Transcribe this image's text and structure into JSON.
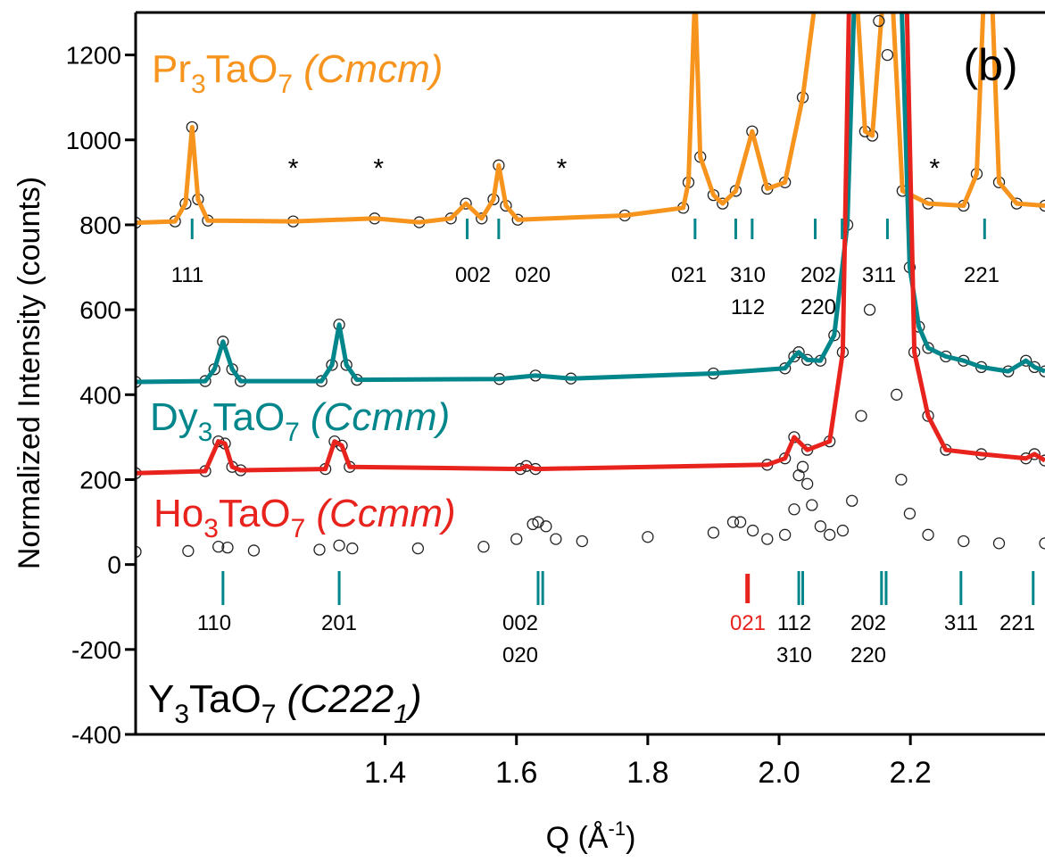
{
  "chart_data": {
    "type": "line",
    "panel_label": "(b)",
    "x_label": [
      "Q (Å",
      "-1",
      ")"
    ],
    "y_label": "Normalized Intensity (counts)",
    "xlim": [
      1.02,
      2.405
    ],
    "ylim": [
      -400,
      1300
    ],
    "xticks": [
      1.4,
      1.6,
      1.8,
      2.0,
      2.2
    ],
    "yticks": [
      -400,
      -200,
      0,
      200,
      400,
      600,
      800,
      1000,
      1200
    ],
    "series": [
      {
        "formula": [
          "Pr",
          "3",
          "TaO",
          "7"
        ],
        "space_group": [
          "(Cmcm)"
        ],
        "color": "#f7941d",
        "fit": true,
        "x": [
          1.02,
          1.08,
          1.096,
          1.106,
          1.115,
          1.13,
          1.26,
          1.384,
          1.452,
          1.5,
          1.523,
          1.547,
          1.565,
          1.573,
          1.584,
          1.602,
          1.765,
          1.854,
          1.862,
          1.872,
          1.88,
          1.9,
          1.914,
          1.934,
          1.959,
          1.982,
          2.009,
          2.036,
          2.057,
          2.118,
          2.131,
          2.142,
          2.159,
          2.172,
          2.188,
          2.227,
          2.281,
          2.301,
          2.312,
          2.324,
          2.335,
          2.362,
          2.405
        ],
        "values": [
          805,
          808,
          850,
          1030,
          860,
          810,
          808,
          815,
          806,
          815,
          850,
          815,
          860,
          940,
          845,
          812,
          822,
          840,
          900,
          1350,
          960,
          870,
          850,
          880,
          1020,
          885,
          900,
          1100,
          1350,
          1350,
          1020,
          1010,
          1350,
          1350,
          880,
          850,
          845,
          920,
          1350,
          1350,
          900,
          850,
          845
        ]
      },
      {
        "formula": [
          "Dy",
          "3",
          "TaO",
          "7"
        ],
        "space_group": [
          "(Ccmm)"
        ],
        "color": "#00868b",
        "fit": true,
        "x": [
          1.02,
          1.126,
          1.14,
          1.153,
          1.167,
          1.18,
          1.303,
          1.319,
          1.33,
          1.341,
          1.357,
          1.574,
          1.629,
          1.683,
          1.9,
          2.009,
          2.023,
          2.03,
          2.043,
          2.063,
          2.084,
          2.104,
          2.115,
          2.186,
          2.199,
          2.213,
          2.227,
          2.254,
          2.281,
          2.308,
          2.349,
          2.376,
          2.389,
          2.405
        ],
        "values": [
          430,
          432,
          460,
          525,
          460,
          432,
          432,
          470,
          565,
          470,
          435,
          437,
          445,
          438,
          450,
          462,
          490,
          500,
          482,
          480,
          540,
          800,
          1350,
          1350,
          700,
          560,
          510,
          490,
          480,
          465,
          455,
          480,
          465,
          455
        ]
      },
      {
        "formula": [
          "Ho",
          "3",
          "TaO",
          "7"
        ],
        "space_group": [
          "(Ccmm)"
        ],
        "color": "#e8221c",
        "fit": true,
        "x": [
          1.02,
          1.126,
          1.146,
          1.156,
          1.167,
          1.18,
          1.309,
          1.323,
          1.334,
          1.346,
          1.606,
          1.615,
          1.629,
          1.982,
          2.009,
          2.023,
          2.043,
          2.077,
          2.097,
          2.107,
          2.194,
          2.206,
          2.227,
          2.254,
          2.308,
          2.376,
          2.389,
          2.405
        ],
        "values": [
          215,
          220,
          290,
          285,
          230,
          222,
          225,
          290,
          280,
          230,
          225,
          232,
          225,
          235,
          250,
          300,
          270,
          290,
          500,
          1350,
          1350,
          500,
          350,
          270,
          260,
          250,
          260,
          245
        ]
      },
      {
        "formula": [
          "Y",
          "3",
          "TaO",
          "7"
        ],
        "space_group": [
          "(C222",
          "1",
          ")"
        ],
        "color": "#000000",
        "fit": false,
        "x": [
          1.02,
          1.1,
          1.146,
          1.16,
          1.2,
          1.3,
          1.33,
          1.35,
          1.45,
          1.55,
          1.6,
          1.625,
          1.633,
          1.645,
          1.66,
          1.7,
          1.8,
          1.9,
          1.93,
          1.941,
          1.96,
          1.982,
          2.009,
          2.023,
          2.03,
          2.036,
          2.043,
          2.05,
          2.063,
          2.077,
          2.097,
          2.111,
          2.125,
          2.138,
          2.152,
          2.165,
          2.179,
          2.186,
          2.199,
          2.227,
          2.281,
          2.335,
          2.405
        ],
        "values": [
          30,
          32,
          42,
          40,
          33,
          35,
          45,
          38,
          38,
          42,
          60,
          95,
          100,
          90,
          60,
          55,
          65,
          75,
          100,
          100,
          80,
          60,
          70,
          130,
          210,
          230,
          190,
          140,
          90,
          70,
          80,
          150,
          350,
          600,
          1280,
          1200,
          400,
          200,
          120,
          70,
          55,
          50,
          50
        ]
      }
    ],
    "pr_reflections": {
      "color": "#00868b",
      "q": [
        1.106,
        1.525,
        1.573,
        1.872,
        1.934,
        1.959,
        2.055,
        2.096,
        2.165,
        2.313
      ],
      "labels": [
        [
          "111"
        ],
        [
          "002"
        ],
        [
          "020"
        ],
        [
          "021"
        ],
        [
          "310",
          "112"
        ],
        [
          "202",
          "220"
        ],
        [
          "311"
        ],
        [
          "221"
        ]
      ]
    },
    "lower_reflections": {
      "color": "#00868b",
      "q": [
        1.153,
        1.33,
        1.633,
        1.64,
        2.03,
        2.036,
        2.156,
        2.163,
        2.277,
        2.387
      ],
      "labels": [
        [
          "110"
        ],
        [
          "201"
        ],
        [
          "002",
          "020"
        ],
        [
          "112",
          "310"
        ],
        [
          "202",
          "220"
        ],
        [
          "311"
        ],
        [
          "221"
        ]
      ]
    },
    "ho_reflections": {
      "color": "#e8221c",
      "q": [
        1.952
      ],
      "labels": [
        [
          "021"
        ]
      ]
    },
    "impurity_markers": {
      "label": "*",
      "q": [
        1.26,
        1.39,
        1.669,
        2.237
      ],
      "y": 942
    }
  }
}
